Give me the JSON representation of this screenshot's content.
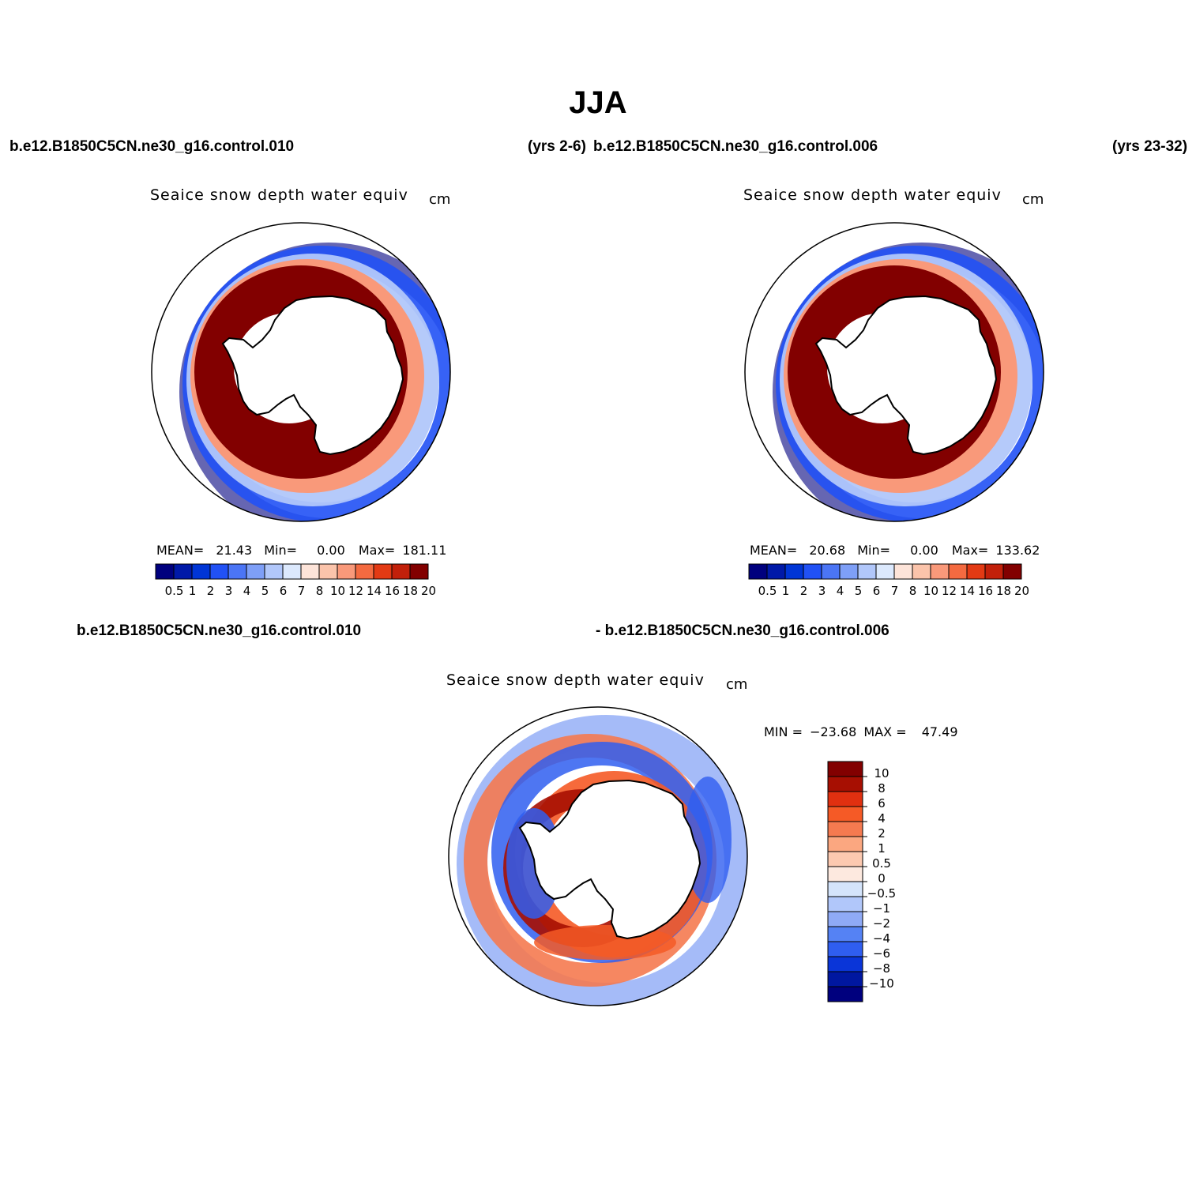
{
  "header": {
    "title": "JJA",
    "case1": "b.e12.B1850C5CN.ne30_g16.control.010",
    "case1_years": "(yrs 2-6)",
    "case2": "b.e12.B1850C5CN.ne30_g16.control.006",
    "case2_years": "(yrs 23-32)",
    "diff_case1": "b.e12.B1850C5CN.ne30_g16.control.010",
    "diff_case2": "- b.e12.B1850C5CN.ne30_g16.control.006"
  },
  "chart_data": [
    {
      "type": "heatmap",
      "projection": "south-polar-stereographic",
      "title": "Seaice snow depth water equiv",
      "units": "cm",
      "stats": {
        "mean_label": "MEAN=",
        "mean": "21.43",
        "min_label": "Min=",
        "min": "0.00",
        "max_label": "Max=",
        "max": "181.11"
      },
      "colorbar": {
        "orientation": "horizontal",
        "levels": [
          "0.5",
          "1",
          "2",
          "3",
          "4",
          "5",
          "6",
          "7",
          "8",
          "10",
          "12",
          "14",
          "16",
          "18",
          "20"
        ],
        "colors": [
          "#00007e",
          "#0019a8",
          "#0035d6",
          "#2151f5",
          "#4b75f5",
          "#7e9ff7",
          "#b1c7fa",
          "#dce9fd",
          "#fde4d9",
          "#fbc4ab",
          "#f9997a",
          "#f46a40",
          "#e33a14",
          "#c2200a",
          "#820000"
        ]
      }
    },
    {
      "type": "heatmap",
      "projection": "south-polar-stereographic",
      "title": "Seaice snow depth water equiv",
      "units": "cm",
      "stats": {
        "mean_label": "MEAN=",
        "mean": "20.68",
        "min_label": "Min=",
        "min": "0.00",
        "max_label": "Max=",
        "max": "133.62"
      },
      "colorbar": {
        "orientation": "horizontal",
        "levels": [
          "0.5",
          "1",
          "2",
          "3",
          "4",
          "5",
          "6",
          "7",
          "8",
          "10",
          "12",
          "14",
          "16",
          "18",
          "20"
        ],
        "colors": [
          "#00007e",
          "#0019a8",
          "#0035d6",
          "#2151f5",
          "#4b75f5",
          "#7e9ff7",
          "#b1c7fa",
          "#dce9fd",
          "#fde4d9",
          "#fbc4ab",
          "#f9997a",
          "#f46a40",
          "#e33a14",
          "#c2200a",
          "#820000"
        ]
      }
    },
    {
      "type": "heatmap",
      "projection": "south-polar-stereographic",
      "title": "Seaice snow depth water equiv",
      "units": "cm",
      "stats": {
        "min_label": "MIN =",
        "min": "−23.68",
        "max_label": "MAX =",
        "max": "47.49"
      },
      "colorbar": {
        "orientation": "vertical",
        "levels": [
          "10",
          "8",
          "6",
          "4",
          "2",
          "1",
          "0.5",
          "0",
          "−0.5",
          "−1",
          "−2",
          "−4",
          "−6",
          "−8",
          "−10"
        ],
        "colors": [
          "#820000",
          "#a70f02",
          "#e03010",
          "#f55a26",
          "#f57a50",
          "#fba780",
          "#fcc9b0",
          "#fde9df",
          "#d4e4fb",
          "#b1c7fa",
          "#8faaf6",
          "#5582f4",
          "#2f5ef0",
          "#0a35d8",
          "#0017a0",
          "#00007e"
        ]
      }
    }
  ]
}
